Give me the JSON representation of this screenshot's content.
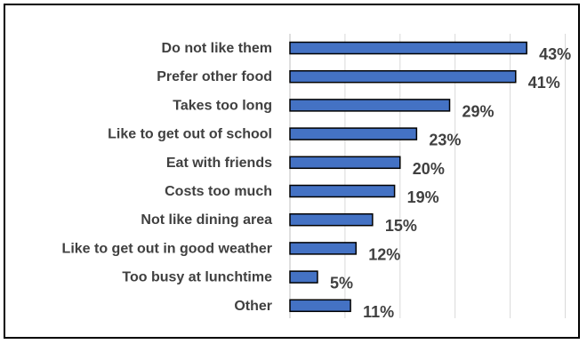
{
  "chart_data": {
    "type": "bar",
    "orientation": "horizontal",
    "title": "",
    "xlabel": "",
    "ylabel": "",
    "categories": [
      "Do not like them",
      "Prefer other food",
      "Takes too long",
      "Like to get out of school",
      "Eat with friends",
      "Costs too much",
      "Not like dining area",
      "Like to get out in good weather",
      "Too busy at lunchtime",
      "Other"
    ],
    "values": [
      43,
      41,
      29,
      23,
      20,
      19,
      15,
      12,
      5,
      11
    ],
    "value_labels": [
      "43%",
      "41%",
      "29%",
      "23%",
      "20%",
      "19%",
      "15%",
      "12%",
      "5%",
      "11%"
    ],
    "unit": "%",
    "xlim": [
      0,
      50
    ],
    "x_gridlines": [
      0,
      10,
      20,
      30,
      40,
      50
    ],
    "x_tick_labels_shown": false,
    "grid": true,
    "legend": "none",
    "colors": {
      "bar_fill": "#4472c4",
      "bar_stroke": "#000000",
      "label_text": "#404040",
      "gridline": "#d9d9d9"
    }
  }
}
